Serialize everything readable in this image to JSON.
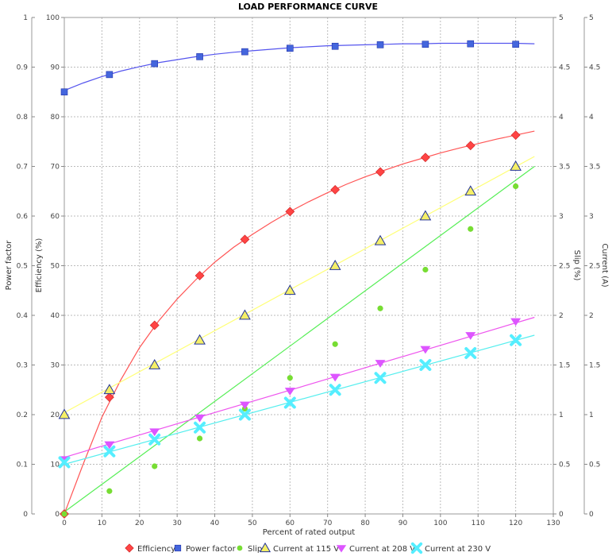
{
  "chart_data": {
    "type": "line",
    "title": "LOAD PERFORMANCE CURVE",
    "xlabel": "Percent of rated output",
    "xlim": [
      0,
      130
    ],
    "xticks": [
      0,
      10,
      20,
      30,
      40,
      50,
      60,
      70,
      80,
      90,
      100,
      110,
      120,
      130
    ],
    "axes": {
      "power_factor": {
        "label": "Power factor",
        "lim": [
          0,
          1
        ],
        "ticks": [
          "0",
          "0.1",
          "0.2",
          "0.3",
          "0.4",
          "0.5",
          "0.6",
          "0.7",
          "0.8",
          "0.9",
          "1"
        ]
      },
      "efficiency": {
        "label": "Efficiency (%)",
        "lim": [
          0,
          100
        ],
        "ticks": [
          "0",
          "10",
          "20",
          "30",
          "40",
          "50",
          "60",
          "70",
          "80",
          "90",
          "100"
        ]
      },
      "slip": {
        "label": "Slip (%)",
        "lim": [
          0,
          5
        ],
        "ticks": [
          "0",
          "0.5",
          "1",
          "1.5",
          "2",
          "2.5",
          "3",
          "3.5",
          "4",
          "4.5",
          "5"
        ]
      },
      "current": {
        "label": "Current (A)",
        "lim": [
          0,
          5
        ],
        "ticks": [
          "0",
          "0.5",
          "1",
          "1.5",
          "2",
          "2.5",
          "3",
          "3.5",
          "4",
          "4.5",
          "5"
        ]
      }
    },
    "grid": true,
    "legend_position": "bottom",
    "x": [
      0,
      12,
      24,
      36,
      48,
      60,
      72,
      84,
      96,
      108,
      120
    ],
    "series": [
      {
        "name": "Efficiency",
        "axis": "efficiency",
        "color": "#ff4444",
        "line_color": "#ff5555",
        "marker": "diamond",
        "values": [
          0,
          23.5,
          38,
          48,
          55.3,
          60.9,
          65.3,
          68.9,
          71.8,
          74.2,
          76.3
        ],
        "curve": [
          [
            0,
            0
          ],
          [
            5,
            10
          ],
          [
            10,
            19.5
          ],
          [
            15,
            27
          ],
          [
            20,
            33.5
          ],
          [
            25,
            38.8
          ],
          [
            30,
            43.3
          ],
          [
            35,
            47.2
          ],
          [
            40,
            50.7
          ],
          [
            45,
            53.7
          ],
          [
            50,
            56.3
          ],
          [
            55,
            58.7
          ],
          [
            60,
            60.9
          ],
          [
            65,
            62.9
          ],
          [
            70,
            64.7
          ],
          [
            75,
            66.4
          ],
          [
            80,
            67.9
          ],
          [
            85,
            69.2
          ],
          [
            90,
            70.5
          ],
          [
            95,
            71.6
          ],
          [
            100,
            72.7
          ],
          [
            105,
            73.7
          ],
          [
            110,
            74.6
          ],
          [
            115,
            75.5
          ],
          [
            120,
            76.3
          ],
          [
            125,
            77.1
          ]
        ]
      },
      {
        "name": "Power factor",
        "axis": "power_factor",
        "color": "#4466dd",
        "line_color": "#5555ee",
        "marker": "square",
        "values": [
          0.85,
          0.885,
          0.907,
          0.921,
          0.931,
          0.938,
          0.942,
          0.945,
          0.946,
          0.947,
          0.946
        ],
        "curve": [
          [
            0,
            0.853
          ],
          [
            5,
            0.868
          ],
          [
            10,
            0.881
          ],
          [
            15,
            0.892
          ],
          [
            20,
            0.901
          ],
          [
            25,
            0.909
          ],
          [
            30,
            0.915
          ],
          [
            35,
            0.921
          ],
          [
            40,
            0.926
          ],
          [
            45,
            0.93
          ],
          [
            50,
            0.933
          ],
          [
            55,
            0.936
          ],
          [
            60,
            0.939
          ],
          [
            65,
            0.941
          ],
          [
            70,
            0.943
          ],
          [
            75,
            0.944
          ],
          [
            80,
            0.945
          ],
          [
            85,
            0.946
          ],
          [
            90,
            0.947
          ],
          [
            95,
            0.947
          ],
          [
            100,
            0.948
          ],
          [
            105,
            0.948
          ],
          [
            110,
            0.948
          ],
          [
            115,
            0.948
          ],
          [
            120,
            0.948
          ],
          [
            125,
            0.947
          ]
        ]
      },
      {
        "name": "Slip",
        "axis": "slip",
        "color": "#77dd33",
        "line_color": "#55ee55",
        "marker": "circle",
        "values": [
          0,
          0.23,
          0.48,
          0.76,
          1.06,
          1.37,
          1.71,
          2.07,
          2.46,
          2.87,
          3.3
        ],
        "curve": [
          [
            0,
            0.02
          ],
          [
            125,
            3.5
          ]
        ]
      },
      {
        "name": "Current at 115 V",
        "axis": "current",
        "color": "#f5ef66",
        "line_color": "#ffff77",
        "marker": "triangle-up",
        "stroke": "#223399",
        "values": [
          1.0,
          1.25,
          1.5,
          1.75,
          2.0,
          2.25,
          2.5,
          2.75,
          3.0,
          3.25,
          3.5
        ],
        "curve": [
          [
            0,
            1.02
          ],
          [
            125,
            3.6
          ]
        ]
      },
      {
        "name": "Current at 208 V",
        "axis": "current",
        "color": "#dd55ff",
        "line_color": "#ee55ee",
        "marker": "triangle-down",
        "values": [
          0.55,
          0.7,
          0.83,
          0.97,
          1.1,
          1.24,
          1.38,
          1.52,
          1.66,
          1.8,
          1.94
        ],
        "curve": [
          [
            0,
            0.57
          ],
          [
            125,
            1.98
          ]
        ]
      },
      {
        "name": "Current at 230 V",
        "axis": "current",
        "color": "#55eeff",
        "line_color": "#55eeee",
        "marker": "x",
        "values": [
          0.52,
          0.63,
          0.75,
          0.87,
          1.0,
          1.12,
          1.25,
          1.37,
          1.5,
          1.62,
          1.75
        ],
        "curve": [
          [
            0,
            0.5
          ],
          [
            125,
            1.8
          ]
        ]
      }
    ]
  }
}
